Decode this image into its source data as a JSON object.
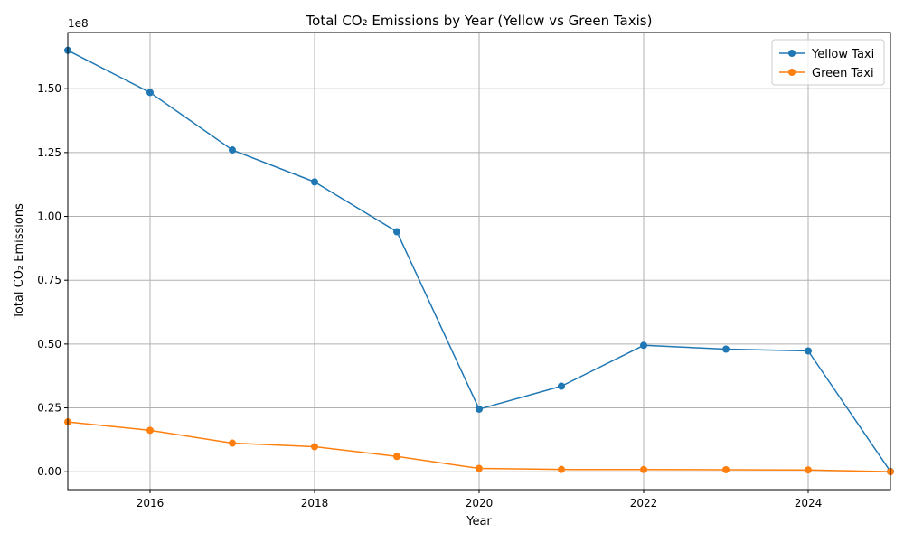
{
  "chart_data": {
    "type": "line",
    "title": "Total CO₂ Emissions by Year (Yellow vs Green Taxis)",
    "xlabel": "Year",
    "ylabel": "Total CO₂ Emissions",
    "y_offset_label": "1e8",
    "xlim": [
      2015,
      2025
    ],
    "ylim": [
      -7000000,
      172000000
    ],
    "x_ticks": [
      2016,
      2018,
      2020,
      2022,
      2024
    ],
    "y_ticks": [
      0,
      25000000,
      50000000,
      75000000,
      100000000,
      125000000,
      150000000
    ],
    "y_tick_labels": [
      "0.00",
      "0.25",
      "0.50",
      "0.75",
      "1.00",
      "1.25",
      "1.50"
    ],
    "grid": true,
    "legend_position": "upper right",
    "x": [
      2015,
      2016,
      2017,
      2018,
      2019,
      2020,
      2021,
      2022,
      2023,
      2024,
      2025
    ],
    "series": [
      {
        "name": "Yellow Taxi",
        "color": "#1f77b4",
        "values": [
          165000000,
          148500000,
          126000000,
          113500000,
          94000000,
          24500000,
          33500000,
          49500000,
          48000000,
          47300000,
          100000
        ]
      },
      {
        "name": "Green Taxi",
        "color": "#ff7f0e",
        "values": [
          19500000,
          16200000,
          11200000,
          9800000,
          6000000,
          1300000,
          900000,
          850000,
          800000,
          700000,
          20000
        ]
      }
    ]
  }
}
